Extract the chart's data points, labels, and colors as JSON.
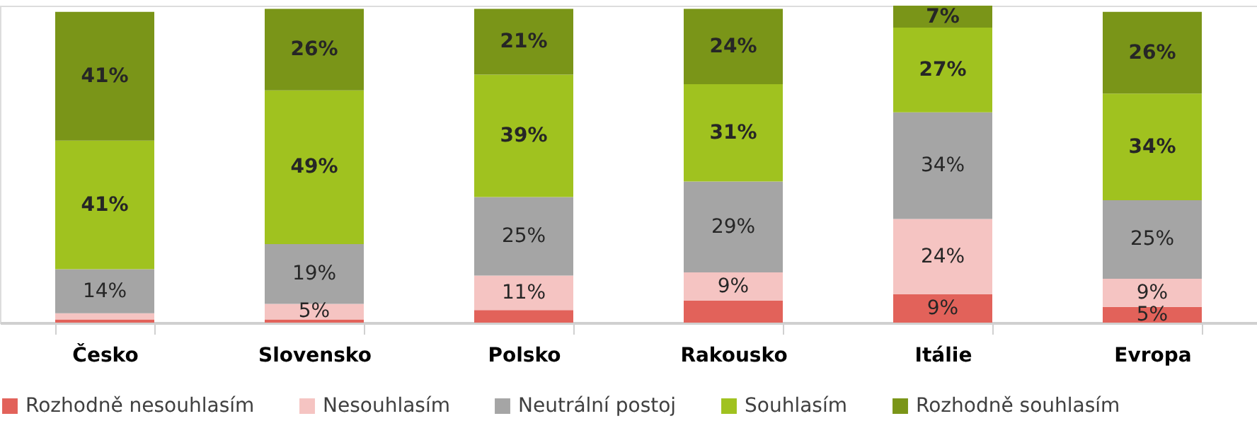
{
  "chart_data": {
    "type": "bar",
    "stacked": true,
    "legend": "bottom",
    "categories": [
      "Česko",
      "Slovensko",
      "Polsko",
      "Rakousko",
      "Itálie",
      "Evropa"
    ],
    "ylim": [
      0,
      101
    ],
    "tick_labels": "x",
    "series": [
      {
        "name": "Rozhodně nesouhlasím",
        "color": "#e2625a",
        "values": [
          1,
          1,
          4,
          7,
          9,
          5
        ],
        "value_labels": [
          null,
          null,
          null,
          null,
          "9%",
          "5%"
        ]
      },
      {
        "name": "Nesouhlasím",
        "color": "#f5c4c2",
        "values": [
          2,
          5,
          11,
          9,
          24,
          9
        ],
        "value_labels": [
          null,
          "5%",
          "11%",
          "9%",
          "24%",
          "9%"
        ]
      },
      {
        "name": "Neutrální postoj",
        "color": "#a5a5a5",
        "values": [
          14,
          19,
          25,
          29,
          34,
          25
        ],
        "value_labels": [
          "14%",
          "19%",
          "25%",
          "29%",
          "34%",
          "25%"
        ]
      },
      {
        "name": "Souhlasím",
        "color": "#a0c21f",
        "values": [
          41,
          49,
          39,
          31,
          27,
          34
        ],
        "value_labels": [
          "41%",
          "49%",
          "39%",
          "31%",
          "27%",
          "34%"
        ]
      },
      {
        "name": "Rozhodně souhlasím",
        "color": "#7a9518",
        "values": [
          41,
          26,
          21,
          24,
          7,
          26
        ],
        "value_labels": [
          "41%",
          "26%",
          "21%",
          "24%",
          "7%",
          "26%"
        ]
      }
    ]
  }
}
